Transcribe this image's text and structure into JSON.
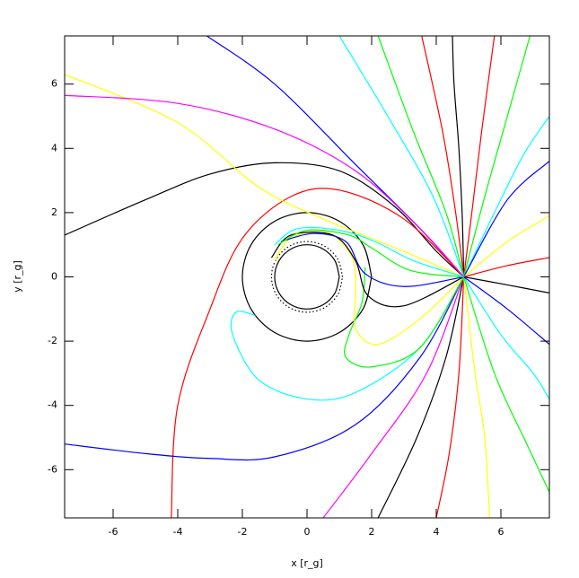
{
  "chart_data": {
    "type": "line",
    "x_label": "x [r_g]",
    "y_label": "y [r_g]",
    "xlim": [
      -7.5,
      7.5
    ],
    "ylim": [
      -7.5,
      7.5
    ],
    "xticks": [
      -6,
      -4,
      -2,
      0,
      2,
      4,
      6
    ],
    "yticks": [
      -6,
      -4,
      -2,
      0,
      2,
      4,
      6
    ],
    "series": [
      {
        "color": "#000000",
        "x": [
          2,
          1.732,
          1,
          0,
          -1,
          -1.732,
          -2,
          -1.732,
          -1,
          0,
          1,
          1.732,
          2
        ],
        "values": [
          0,
          1,
          1.732,
          2,
          1.732,
          1,
          0,
          -1,
          -1.732,
          -2,
          -1.732,
          -1,
          0
        ]
      },
      {
        "color": "#000000",
        "x": [
          1,
          0.866,
          0.5,
          0,
          -0.5,
          -0.866,
          -1,
          -0.866,
          -0.5,
          0,
          0.5,
          0.866,
          1
        ],
        "values": [
          0,
          0.5,
          0.866,
          1,
          0.866,
          0.5,
          0,
          -0.5,
          -0.866,
          -1,
          -0.866,
          -0.5,
          0
        ]
      },
      {
        "color": "#000000",
        "dash": "dotted",
        "x": [
          1.1,
          0.953,
          0.55,
          0,
          -0.55,
          -0.953,
          -1.1,
          -0.953,
          -0.55,
          0,
          0.55,
          0.953,
          1.1
        ],
        "values": [
          0,
          0.55,
          0.953,
          1.1,
          0.953,
          0.55,
          0,
          -0.55,
          -0.953,
          -1.1,
          -0.953,
          -0.55,
          0
        ]
      },
      {
        "color": "#000000",
        "x": [
          4.85,
          4.8,
          4.7,
          4.55,
          4.5
        ],
        "values": [
          0,
          2,
          4,
          6,
          7.5
        ]
      },
      {
        "color": "#ff0000",
        "x": [
          4.85,
          5.1,
          5.4,
          5.8
        ],
        "values": [
          0,
          2,
          4.5,
          7.5
        ]
      },
      {
        "color": "#ff0000",
        "x": [
          4.85,
          4.6,
          4.2,
          3.55
        ],
        "values": [
          0,
          2,
          4.5,
          7.5
        ]
      },
      {
        "color": "#00ff00",
        "x": [
          4.85,
          5.5,
          6.2,
          6.9
        ],
        "values": [
          0,
          2.5,
          5,
          7.5
        ]
      },
      {
        "color": "#00ff00",
        "x": [
          4.85,
          4.3,
          3.3,
          2.2
        ],
        "values": [
          0,
          2,
          4.5,
          7.5
        ]
      },
      {
        "color": "#00ffff",
        "x": [
          4.85,
          5.8,
          6.7,
          7.5
        ],
        "values": [
          0,
          2,
          3.8,
          5
        ]
      },
      {
        "color": "#00ffff",
        "x": [
          4.85,
          3.9,
          2.5,
          1.0
        ],
        "values": [
          0,
          2.5,
          5,
          7.5
        ]
      },
      {
        "color": "#0000ff",
        "x": [
          4.85,
          3.5,
          1.5,
          -1,
          -3.1
        ],
        "values": [
          0,
          1.5,
          3.5,
          6,
          7.5
        ]
      },
      {
        "color": "#0000ff",
        "x": [
          4.85,
          6.2,
          7.5
        ],
        "values": [
          0,
          2.4,
          3.6
        ]
      },
      {
        "color": "#ffff00",
        "x": [
          4.85,
          6.2,
          7.5
        ],
        "values": [
          0,
          1.1,
          1.9
        ]
      },
      {
        "color": "#ff0000",
        "x": [
          4.85,
          6.2,
          7.5
        ],
        "values": [
          0,
          0.35,
          0.6
        ]
      },
      {
        "color": "#000000",
        "x": [
          4.85,
          6.2,
          7.5
        ],
        "values": [
          0,
          -0.25,
          -0.5
        ]
      },
      {
        "color": "#000000",
        "x": [
          4.85,
          4.3,
          3.4,
          2.2
        ],
        "values": [
          0,
          -2.5,
          -5,
          -7.5
        ]
      },
      {
        "color": "#ff0000",
        "x": [
          4.85,
          4.7,
          4.4,
          4.0
        ],
        "values": [
          0,
          -3,
          -5.5,
          -7.5
        ]
      },
      {
        "color": "#ffff00",
        "x": [
          4.85,
          5.2,
          5.5,
          5.65
        ],
        "values": [
          0,
          -3,
          -5,
          -7.5
        ]
      },
      {
        "color": "#00ff00",
        "x": [
          4.85,
          5.8,
          6.8,
          7.5
        ],
        "values": [
          0,
          -3,
          -5.2,
          -6.7
        ]
      },
      {
        "color": "#ff00ff",
        "x": [
          4.85,
          3.7,
          2,
          0.5
        ],
        "values": [
          0,
          -3,
          -5.5,
          -7.5
        ]
      },
      {
        "color": "#00ffff",
        "x": [
          4.85,
          6,
          7,
          7.5
        ],
        "values": [
          0,
          -1.8,
          -3,
          -3.8
        ]
      },
      {
        "color": "#0000ff",
        "x": [
          4.85,
          6.2,
          7.5
        ],
        "values": [
          0,
          -1,
          -2.1
        ]
      },
      {
        "color": "#000000",
        "x": [
          -7.5,
          -5,
          -3,
          -1,
          1,
          2.7,
          4,
          4.85
        ],
        "values": [
          1.3,
          2.4,
          3.2,
          3.55,
          3.3,
          2.2,
          0.8,
          0
        ]
      },
      {
        "color": "#ff0000",
        "x": [
          -4.2,
          -4,
          -3,
          -2,
          -0.5,
          1,
          3,
          4.85
        ],
        "values": [
          -7.5,
          -4,
          -1,
          1.2,
          2.5,
          2.7,
          1.8,
          0
        ]
      },
      {
        "color": "#ffff00",
        "x": [
          -7.5,
          -4,
          -1.5,
          0.5,
          2.5,
          4.85
        ],
        "values": [
          6.3,
          4.8,
          2.8,
          1.8,
          1.0,
          0
        ]
      },
      {
        "color": "#ff00ff",
        "x": [
          -7.5,
          -4,
          -1,
          1.5,
          3.5,
          4.85
        ],
        "values": [
          5.65,
          5.4,
          4.6,
          3.3,
          1.5,
          0
        ]
      },
      {
        "color": "#0000ff",
        "x": [
          -7.5,
          -5,
          -3,
          -1,
          1.5,
          3.5,
          4.85
        ],
        "values": [
          -5.2,
          -5.5,
          -5.65,
          -5.6,
          -4.6,
          -2.5,
          0
        ]
      },
      {
        "color": "#00ffff",
        "x": [
          4.85,
          3.5,
          1.5,
          0,
          -1.5,
          -2.3,
          -2.2,
          -1.6
        ],
        "values": [
          0,
          -2.2,
          -3.6,
          -3.8,
          -3.2,
          -1.8,
          -1.1,
          -1.2
        ]
      },
      {
        "color": "#00ff00",
        "x": [
          4.85,
          3.5,
          2,
          1.2,
          1.3,
          1.7,
          1.8
        ],
        "values": [
          0,
          -2.2,
          -2.8,
          -2.5,
          -1.8,
          -0.8,
          0.3
        ]
      },
      {
        "color": "#ffff00",
        "x": [
          4.85,
          3.5,
          2.2,
          1.5,
          1.5,
          1.4,
          0.6,
          -0.5,
          -1.0
        ],
        "values": [
          0,
          -1.3,
          -2.1,
          -1.6,
          -0.5,
          0.6,
          1.4,
          1.2,
          0.5
        ]
      },
      {
        "color": "#000000",
        "x": [
          4.85,
          3,
          1.9,
          1.5,
          0.8,
          -0.5,
          -1.1
        ],
        "values": [
          0,
          -0.9,
          -0.6,
          0.5,
          1.3,
          1.3,
          0.6
        ]
      },
      {
        "color": "#0000ff",
        "x": [
          4.85,
          3,
          1.8,
          1.2,
          0.2,
          -0.8
        ],
        "values": [
          0,
          -0.3,
          0.1,
          1.1,
          1.35,
          1.1
        ]
      },
      {
        "color": "#00ff00",
        "x": [
          4.85,
          3.2,
          2.0,
          1.3,
          0,
          -0.9
        ],
        "values": [
          0,
          0.2,
          0.9,
          1.3,
          1.45,
          1.0
        ]
      },
      {
        "color": "#00ffff",
        "x": [
          4.85,
          3.3,
          2.1,
          1.0,
          -0.3,
          -1.0
        ],
        "values": [
          0,
          0.5,
          1.1,
          1.45,
          1.5,
          1.0
        ]
      }
    ]
  }
}
